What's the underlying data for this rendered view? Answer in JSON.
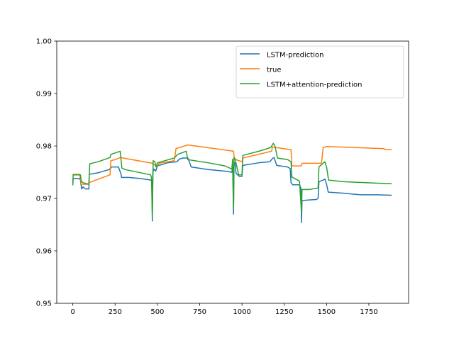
{
  "chart_data": {
    "type": "line",
    "title": "",
    "xlabel": "",
    "ylabel": "",
    "xlim": [
      -95,
      1985
    ],
    "ylim": [
      0.95,
      1.0
    ],
    "x_ticks": [
      0,
      250,
      500,
      750,
      1000,
      1250,
      1500,
      1750
    ],
    "x_tick_labels": [
      "0",
      "250",
      "500",
      "750",
      "1000",
      "1250",
      "1500",
      "1750"
    ],
    "y_ticks": [
      0.95,
      0.96,
      0.97,
      0.98,
      0.99,
      1.0
    ],
    "y_tick_labels": [
      "0.95",
      "0.96",
      "0.97",
      "0.98",
      "0.99",
      "1.00"
    ],
    "grid": false,
    "legend_position": "top-right",
    "series": [
      {
        "name": "LSTM-prediction",
        "color": "#1f77b4",
        "points": [
          [
            0,
            0.9727
          ],
          [
            2,
            0.9738
          ],
          [
            40,
            0.9738
          ],
          [
            45,
            0.9735
          ],
          [
            52,
            0.9718
          ],
          [
            60,
            0.9722
          ],
          [
            75,
            0.9718
          ],
          [
            95,
            0.9718
          ],
          [
            97,
            0.9746
          ],
          [
            150,
            0.9749
          ],
          [
            215,
            0.9755
          ],
          [
            230,
            0.976
          ],
          [
            270,
            0.976
          ],
          [
            285,
            0.9746
          ],
          [
            288,
            0.974
          ],
          [
            330,
            0.974
          ],
          [
            400,
            0.9738
          ],
          [
            460,
            0.9735
          ],
          [
            468,
            0.9733
          ],
          [
            470,
            0.9657
          ],
          [
            473,
            0.975
          ],
          [
            480,
            0.9756
          ],
          [
            490,
            0.9752
          ],
          [
            500,
            0.9762
          ],
          [
            560,
            0.9768
          ],
          [
            615,
            0.977
          ],
          [
            630,
            0.9775
          ],
          [
            650,
            0.9777
          ],
          [
            680,
            0.9777
          ],
          [
            700,
            0.976
          ],
          [
            800,
            0.9755
          ],
          [
            900,
            0.9752
          ],
          [
            940,
            0.975
          ],
          [
            945,
            0.976
          ],
          [
            950,
            0.967
          ],
          [
            953,
            0.9766
          ],
          [
            958,
            0.9768
          ],
          [
            965,
            0.9748
          ],
          [
            985,
            0.9742
          ],
          [
            1000,
            0.9742
          ],
          [
            1005,
            0.9763
          ],
          [
            1100,
            0.9768
          ],
          [
            1165,
            0.977
          ],
          [
            1180,
            0.9776
          ],
          [
            1190,
            0.9778
          ],
          [
            1205,
            0.9763
          ],
          [
            1270,
            0.976
          ],
          [
            1285,
            0.9757
          ],
          [
            1290,
            0.973
          ],
          [
            1300,
            0.9726
          ],
          [
            1340,
            0.9726
          ],
          [
            1348,
            0.972
          ],
          [
            1352,
            0.9654
          ],
          [
            1355,
            0.9696
          ],
          [
            1390,
            0.9697
          ],
          [
            1440,
            0.9698
          ],
          [
            1450,
            0.97
          ],
          [
            1455,
            0.9732
          ],
          [
            1480,
            0.9735
          ],
          [
            1490,
            0.9737
          ],
          [
            1500,
            0.9727
          ],
          [
            1510,
            0.9712
          ],
          [
            1600,
            0.971
          ],
          [
            1700,
            0.9707
          ],
          [
            1800,
            0.9707
          ],
          [
            1885,
            0.9706
          ]
        ]
      },
      {
        "name": "true",
        "color": "#ff7f0e",
        "points": [
          [
            0,
            0.9746
          ],
          [
            40,
            0.9746
          ],
          [
            50,
            0.9727
          ],
          [
            92,
            0.9727
          ],
          [
            95,
            0.973
          ],
          [
            220,
            0.9745
          ],
          [
            225,
            0.9772
          ],
          [
            250,
            0.9774
          ],
          [
            280,
            0.9778
          ],
          [
            470,
            0.9767
          ],
          [
            475,
            0.9765
          ],
          [
            500,
            0.9762
          ],
          [
            510,
            0.9767
          ],
          [
            600,
            0.9772
          ],
          [
            610,
            0.9795
          ],
          [
            680,
            0.9802
          ],
          [
            950,
            0.979
          ],
          [
            955,
            0.9775
          ],
          [
            1000,
            0.977
          ],
          [
            1005,
            0.9777
          ],
          [
            1175,
            0.979
          ],
          [
            1180,
            0.9798
          ],
          [
            1290,
            0.9793
          ],
          [
            1295,
            0.9762
          ],
          [
            1350,
            0.9762
          ],
          [
            1355,
            0.9767
          ],
          [
            1470,
            0.9767
          ],
          [
            1480,
            0.9797
          ],
          [
            1500,
            0.9799
          ],
          [
            1840,
            0.9795
          ],
          [
            1845,
            0.9793
          ],
          [
            1885,
            0.9793
          ]
        ]
      },
      {
        "name": "LSTM+attention-prediction",
        "color": "#2ca02c",
        "points": [
          [
            0,
            0.9725
          ],
          [
            2,
            0.9745
          ],
          [
            45,
            0.9745
          ],
          [
            50,
            0.9733
          ],
          [
            60,
            0.973
          ],
          [
            95,
            0.9727
          ],
          [
            100,
            0.9766
          ],
          [
            150,
            0.977
          ],
          [
            220,
            0.9778
          ],
          [
            225,
            0.9784
          ],
          [
            280,
            0.979
          ],
          [
            290,
            0.9758
          ],
          [
            310,
            0.9755
          ],
          [
            460,
            0.9745
          ],
          [
            465,
            0.974
          ],
          [
            470,
            0.9665
          ],
          [
            475,
            0.9772
          ],
          [
            485,
            0.977
          ],
          [
            492,
            0.976
          ],
          [
            500,
            0.9768
          ],
          [
            600,
            0.9777
          ],
          [
            620,
            0.9784
          ],
          [
            670,
            0.979
          ],
          [
            680,
            0.9774
          ],
          [
            800,
            0.9768
          ],
          [
            900,
            0.9762
          ],
          [
            940,
            0.9756
          ],
          [
            945,
            0.9775
          ],
          [
            950,
            0.968
          ],
          [
            953,
            0.9778
          ],
          [
            960,
            0.9775
          ],
          [
            980,
            0.9745
          ],
          [
            1000,
            0.9745
          ],
          [
            1005,
            0.9782
          ],
          [
            1100,
            0.979
          ],
          [
            1170,
            0.9797
          ],
          [
            1185,
            0.9805
          ],
          [
            1195,
            0.98
          ],
          [
            1210,
            0.9777
          ],
          [
            1270,
            0.9774
          ],
          [
            1290,
            0.977
          ],
          [
            1295,
            0.9741
          ],
          [
            1340,
            0.9733
          ],
          [
            1352,
            0.9672
          ],
          [
            1355,
            0.9717
          ],
          [
            1400,
            0.9717
          ],
          [
            1450,
            0.972
          ],
          [
            1455,
            0.976
          ],
          [
            1490,
            0.977
          ],
          [
            1500,
            0.976
          ],
          [
            1512,
            0.9735
          ],
          [
            1600,
            0.9732
          ],
          [
            1800,
            0.9729
          ],
          [
            1885,
            0.9728
          ]
        ]
      }
    ]
  }
}
